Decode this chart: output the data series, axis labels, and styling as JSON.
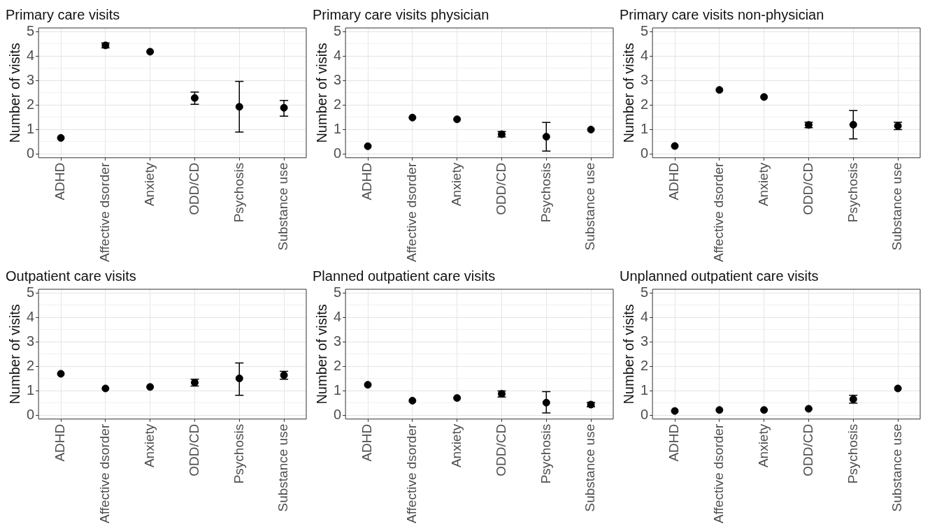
{
  "chart_data": [
    {
      "type": "scatter",
      "title": "Primary care visits",
      "ylabel": "Number of visits",
      "categories": [
        "ADHD",
        "Affective dsorder",
        "Anxiety",
        "ODD/CD",
        "Psychosis",
        "Substance use"
      ],
      "color": "#000000",
      "marker": "circle",
      "grid": true,
      "ylim": [
        -0.15,
        5.15
      ],
      "yticks": [
        0,
        {
          "value": 0.5,
          "label": null
        },
        1,
        {
          "value": 1.5,
          "label": null
        },
        2,
        {
          "value": 2.5,
          "label": null
        },
        3,
        {
          "value": 3.5,
          "label": null
        },
        4,
        {
          "value": 4.5,
          "label": null
        },
        5
      ],
      "values": [
        0.66,
        4.44,
        4.18,
        2.29,
        1.93,
        1.89
      ],
      "errors": [
        null,
        [
          4.34,
          4.54
        ],
        null,
        [
          2.03,
          2.53
        ],
        [
          0.9,
          2.97
        ],
        [
          1.55,
          2.19
        ]
      ]
    },
    {
      "type": "scatter",
      "title": "Primary care visits physician",
      "ylabel": "Number of visits",
      "categories": [
        "ADHD",
        "Affective dsorder",
        "Anxiety",
        "ODD/CD",
        "Psychosis",
        "Substance use"
      ],
      "color": "#000000",
      "marker": "circle",
      "grid": true,
      "ylim": [
        -0.15,
        5.15
      ],
      "yticks": [
        0,
        {
          "value": 0.5,
          "label": null
        },
        1,
        {
          "value": 1.5,
          "label": null
        },
        2,
        {
          "value": 2.5,
          "label": null
        },
        3,
        {
          "value": 3.5,
          "label": null
        },
        4,
        {
          "value": 4.5,
          "label": null
        },
        5
      ],
      "values": [
        0.32,
        1.49,
        1.42,
        0.81,
        0.71,
        1.0
      ],
      "errors": [
        null,
        null,
        null,
        [
          0.7,
          0.92
        ],
        [
          0.12,
          1.29
        ],
        null
      ]
    },
    {
      "type": "scatter",
      "title": "Primary care visits non-physician",
      "ylabel": "Number of visits",
      "categories": [
        "ADHD",
        "Affective dsorder",
        "Anxiety",
        "ODD/CD",
        "Psychosis",
        "Substance use"
      ],
      "color": "#000000",
      "marker": "circle",
      "grid": true,
      "ylim": [
        -0.15,
        5.15
      ],
      "yticks": [
        0,
        {
          "value": 0.5,
          "label": null
        },
        1,
        {
          "value": 1.5,
          "label": null
        },
        2,
        {
          "value": 2.5,
          "label": null
        },
        3,
        {
          "value": 3.5,
          "label": null
        },
        4,
        {
          "value": 4.5,
          "label": null
        },
        5
      ],
      "values": [
        0.33,
        2.62,
        2.33,
        1.19,
        1.2,
        1.15
      ],
      "errors": [
        null,
        null,
        null,
        [
          1.08,
          1.3
        ],
        [
          0.62,
          1.78
        ],
        [
          1.0,
          1.3
        ]
      ]
    },
    {
      "type": "scatter",
      "title": "Outpatient care visits",
      "ylabel": "Number of visits",
      "categories": [
        "ADHD",
        "Affective dsorder",
        "Anxiety",
        "ODD/CD",
        "Psychosis",
        "Substance use"
      ],
      "color": "#000000",
      "marker": "circle",
      "grid": true,
      "ylim": [
        -0.15,
        5.15
      ],
      "yticks": [
        0,
        {
          "value": 0.5,
          "label": null
        },
        1,
        {
          "value": 1.5,
          "label": null
        },
        2,
        {
          "value": 2.5,
          "label": null
        },
        3,
        {
          "value": 3.5,
          "label": null
        },
        4,
        {
          "value": 4.5,
          "label": null
        },
        5
      ],
      "values": [
        1.7,
        1.1,
        1.16,
        1.34,
        1.51,
        1.64
      ],
      "errors": [
        null,
        null,
        null,
        [
          1.2,
          1.48
        ],
        [
          0.82,
          2.14
        ],
        [
          1.48,
          1.8
        ]
      ]
    },
    {
      "type": "scatter",
      "title": "Planned outpatient care visits",
      "ylabel": "Number of visits",
      "categories": [
        "ADHD",
        "Affective dsorder",
        "Anxiety",
        "ODD/CD",
        "Psychosis",
        "Substance use"
      ],
      "color": "#000000",
      "marker": "circle",
      "grid": true,
      "ylim": [
        -0.15,
        5.15
      ],
      "yticks": [
        0,
        {
          "value": 0.5,
          "label": null
        },
        1,
        {
          "value": 1.5,
          "label": null
        },
        2,
        {
          "value": 2.5,
          "label": null
        },
        3,
        {
          "value": 3.5,
          "label": null
        },
        4,
        {
          "value": 4.5,
          "label": null
        },
        5
      ],
      "values": [
        1.25,
        0.6,
        0.71,
        0.88,
        0.52,
        0.44
      ],
      "errors": [
        null,
        null,
        null,
        [
          0.75,
          1.0
        ],
        [
          0.1,
          0.97
        ],
        [
          0.35,
          0.53
        ]
      ]
    },
    {
      "type": "scatter",
      "title": "Unplanned outpatient care visits",
      "ylabel": "Number of visits",
      "categories": [
        "ADHD",
        "Affective dsorder",
        "Anxiety",
        "ODD/CD",
        "Psychosis",
        "Substance use"
      ],
      "color": "#000000",
      "marker": "circle",
      "grid": true,
      "ylim": [
        -0.15,
        5.15
      ],
      "yticks": [
        0,
        {
          "value": 0.5,
          "label": null
        },
        1,
        {
          "value": 1.5,
          "label": null
        },
        2,
        {
          "value": 2.5,
          "label": null
        },
        3,
        {
          "value": 3.5,
          "label": null
        },
        4,
        {
          "value": 4.5,
          "label": null
        },
        5
      ],
      "values": [
        0.18,
        0.22,
        0.22,
        0.27,
        0.66,
        1.1
      ],
      "errors": [
        null,
        null,
        null,
        null,
        [
          0.5,
          0.82
        ],
        null
      ]
    }
  ]
}
